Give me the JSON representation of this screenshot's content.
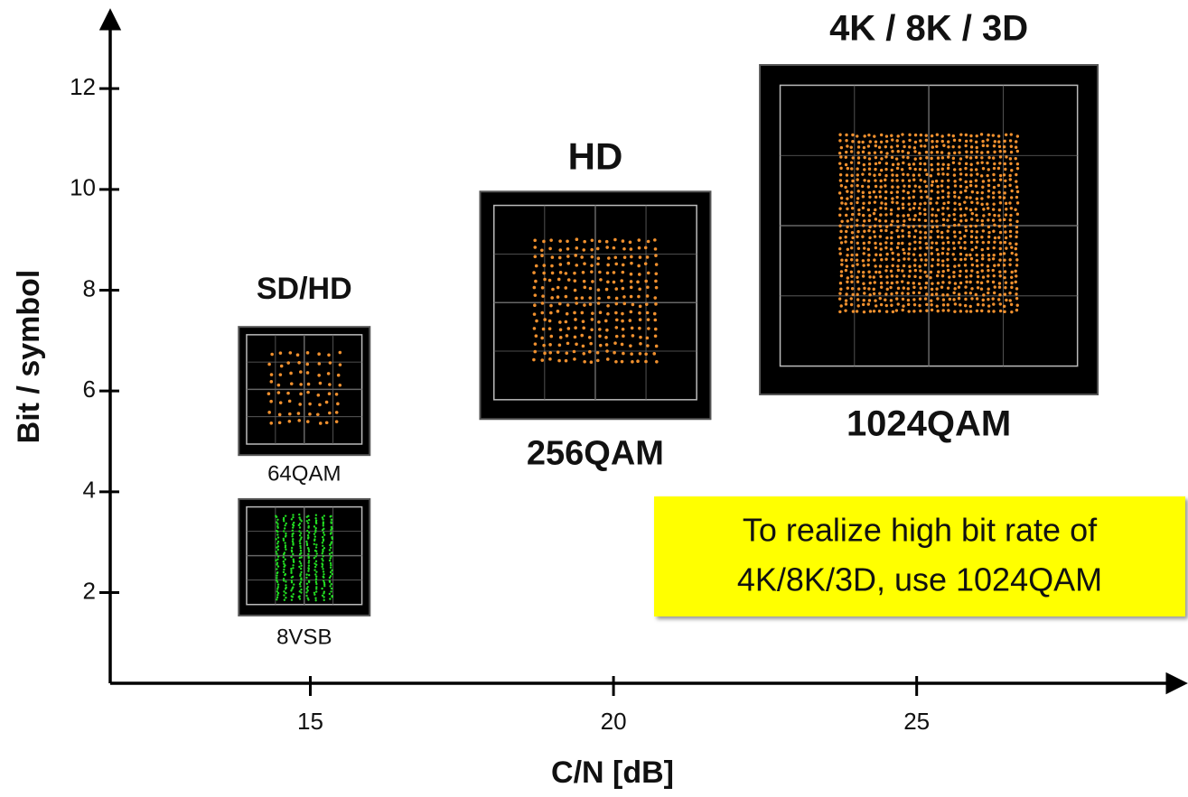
{
  "chart_data": {
    "type": "scatter",
    "x_label": "C/N [dB]",
    "y_label": "Bit / symbol",
    "xlim": [
      11.7,
      29.4
    ],
    "ylim": [
      0.2,
      13.4
    ],
    "xticks": [
      15,
      20,
      25
    ],
    "yticks": [
      2,
      4,
      6,
      8,
      10,
      12
    ],
    "points": [
      {
        "label": "8VSB",
        "group": null,
        "x": 14.9,
        "y": 2.7
      },
      {
        "label": "64QAM",
        "group": "SD/HD",
        "x": 14.9,
        "y": 6
      },
      {
        "label": "256QAM",
        "group": "HD",
        "x": 19.7,
        "y": 7.7
      },
      {
        "label": "1024QAM",
        "group": "4K / 8K / 3D",
        "x": 25.2,
        "y": 9.2
      }
    ],
    "annotation": [
      "To realize high bit rate of",
      "4K/8K/3D, use 1024QAM"
    ]
  }
}
